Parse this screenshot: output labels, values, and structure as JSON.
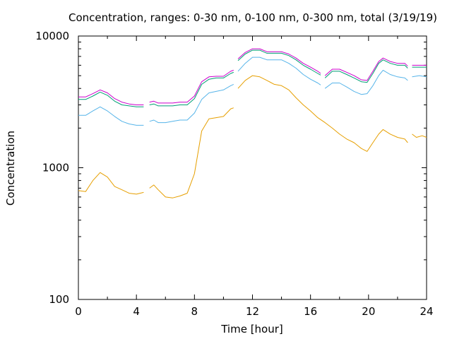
{
  "chart_data": {
    "type": "line",
    "title": "Concentration, ranges: 0-30 nm, 0-100 nm, 0-300 nm, total (3/19/19)",
    "xlabel": "Time [hour]",
    "ylabel": "Concentration",
    "xlim": [
      0,
      24
    ],
    "ylim": [
      100,
      10000
    ],
    "yscale": "log",
    "grid": false,
    "x_ticks": [
      0,
      4,
      8,
      12,
      16,
      20,
      24
    ],
    "y_ticks": [
      100,
      1000,
      10000
    ],
    "series": [
      {
        "color": "#e69f00",
        "segments": [
          [
            [
              0,
              670
            ],
            [
              0.5,
              660
            ],
            [
              1,
              800
            ],
            [
              1.5,
              920
            ],
            [
              2,
              850
            ],
            [
              2.5,
              720
            ],
            [
              3,
              680
            ],
            [
              3.5,
              640
            ],
            [
              4,
              630
            ],
            [
              4.5,
              650
            ]
          ],
          [
            [
              4.9,
              700
            ],
            [
              5.2,
              740
            ],
            [
              5.5,
              680
            ],
            [
              6,
              600
            ],
            [
              6.5,
              590
            ],
            [
              7,
              610
            ],
            [
              7.5,
              640
            ],
            [
              8,
              900
            ],
            [
              8.5,
              1900
            ],
            [
              9,
              2350
            ],
            [
              9.5,
              2400
            ],
            [
              10,
              2450
            ],
            [
              10.5,
              2800
            ],
            [
              10.7,
              2850
            ]
          ],
          [
            [
              11,
              4000
            ],
            [
              11.5,
              4600
            ],
            [
              12,
              5000
            ],
            [
              12.5,
              4900
            ],
            [
              13,
              4600
            ],
            [
              13.5,
              4300
            ],
            [
              14,
              4200
            ],
            [
              14.5,
              3900
            ],
            [
              15,
              3400
            ],
            [
              15.5,
              3000
            ],
            [
              16,
              2700
            ],
            [
              16.5,
              2400
            ],
            [
              17,
              2200
            ],
            [
              17.5,
              2000
            ],
            [
              18,
              1800
            ],
            [
              18.5,
              1650
            ],
            [
              19,
              1550
            ],
            [
              19.5,
              1400
            ],
            [
              19.9,
              1330
            ],
            [
              20.3,
              1550
            ],
            [
              20.7,
              1800
            ],
            [
              21,
              1950
            ],
            [
              21.5,
              1800
            ],
            [
              22,
              1700
            ],
            [
              22.5,
              1650
            ],
            [
              22.7,
              1550
            ]
          ],
          [
            [
              23,
              1800
            ],
            [
              23.3,
              1700
            ],
            [
              23.7,
              1750
            ],
            [
              24,
              1700
            ]
          ]
        ]
      },
      {
        "color": "#56b4e9",
        "segments": [
          [
            [
              0,
              2500
            ],
            [
              0.5,
              2500
            ],
            [
              1,
              2700
            ],
            [
              1.5,
              2900
            ],
            [
              2,
              2700
            ],
            [
              2.5,
              2450
            ],
            [
              3,
              2250
            ],
            [
              3.5,
              2150
            ],
            [
              4,
              2100
            ],
            [
              4.5,
              2100
            ]
          ],
          [
            [
              4.9,
              2250
            ],
            [
              5.2,
              2300
            ],
            [
              5.5,
              2200
            ],
            [
              6,
              2200
            ],
            [
              6.5,
              2250
            ],
            [
              7,
              2300
            ],
            [
              7.5,
              2300
            ],
            [
              8,
              2600
            ],
            [
              8.5,
              3300
            ],
            [
              9,
              3700
            ],
            [
              9.5,
              3800
            ],
            [
              10,
              3900
            ],
            [
              10.5,
              4200
            ],
            [
              10.7,
              4300
            ]
          ],
          [
            [
              11,
              5400
            ],
            [
              11.5,
              6200
            ],
            [
              12,
              6900
            ],
            [
              12.5,
              6900
            ],
            [
              13,
              6600
            ],
            [
              13.5,
              6600
            ],
            [
              14,
              6600
            ],
            [
              14.5,
              6200
            ],
            [
              15,
              5700
            ],
            [
              15.5,
              5100
            ],
            [
              16,
              4700
            ],
            [
              16.5,
              4400
            ],
            [
              16.7,
              4250
            ]
          ],
          [
            [
              17,
              4000
            ],
            [
              17.5,
              4400
            ],
            [
              18,
              4400
            ],
            [
              18.5,
              4100
            ],
            [
              19,
              3800
            ],
            [
              19.5,
              3600
            ],
            [
              19.9,
              3650
            ],
            [
              20.3,
              4200
            ],
            [
              20.7,
              5000
            ],
            [
              21,
              5500
            ],
            [
              21.5,
              5100
            ],
            [
              22,
              4900
            ],
            [
              22.5,
              4800
            ],
            [
              22.7,
              4600
            ]
          ],
          [
            [
              23,
              4900
            ],
            [
              23.5,
              5000
            ],
            [
              24,
              4900
            ]
          ]
        ]
      },
      {
        "color": "#009e73",
        "segments": [
          [
            [
              0,
              3300
            ],
            [
              0.5,
              3300
            ],
            [
              1,
              3500
            ],
            [
              1.5,
              3750
            ],
            [
              2,
              3550
            ],
            [
              2.5,
              3200
            ],
            [
              3,
              3000
            ],
            [
              3.5,
              2950
            ],
            [
              4,
              2900
            ],
            [
              4.5,
              2900
            ]
          ],
          [
            [
              4.9,
              3000
            ],
            [
              5.2,
              3050
            ],
            [
              5.5,
              2950
            ],
            [
              6,
              2950
            ],
            [
              6.5,
              2950
            ],
            [
              7,
              3000
            ],
            [
              7.5,
              3000
            ],
            [
              8,
              3350
            ],
            [
              8.5,
              4300
            ],
            [
              9,
              4700
            ],
            [
              9.5,
              4800
            ],
            [
              10,
              4800
            ],
            [
              10.5,
              5200
            ],
            [
              10.7,
              5300
            ]
          ],
          [
            [
              11,
              6500
            ],
            [
              11.5,
              7300
            ],
            [
              12,
              7800
            ],
            [
              12.5,
              7800
            ],
            [
              13,
              7400
            ],
            [
              13.5,
              7400
            ],
            [
              14,
              7400
            ],
            [
              14.5,
              7100
            ],
            [
              15,
              6600
            ],
            [
              15.5,
              6000
            ],
            [
              16,
              5600
            ],
            [
              16.5,
              5200
            ],
            [
              16.7,
              5050
            ]
          ],
          [
            [
              17,
              4800
            ],
            [
              17.5,
              5400
            ],
            [
              18,
              5400
            ],
            [
              18.5,
              5100
            ],
            [
              19,
              4800
            ],
            [
              19.5,
              4500
            ],
            [
              19.9,
              4450
            ],
            [
              20.3,
              5200
            ],
            [
              20.7,
              6200
            ],
            [
              21,
              6600
            ],
            [
              21.5,
              6200
            ],
            [
              22,
              6000
            ],
            [
              22.5,
              6000
            ],
            [
              22.7,
              5700
            ]
          ],
          [
            [
              23,
              5800
            ],
            [
              23.5,
              5800
            ],
            [
              24,
              5800
            ]
          ]
        ]
      },
      {
        "color": "#cc00cc",
        "segments": [
          [
            [
              0,
              3450
            ],
            [
              0.5,
              3450
            ],
            [
              1,
              3650
            ],
            [
              1.5,
              3900
            ],
            [
              2,
              3700
            ],
            [
              2.5,
              3350
            ],
            [
              3,
              3150
            ],
            [
              3.5,
              3050
            ],
            [
              4,
              3000
            ],
            [
              4.5,
              3000
            ]
          ],
          [
            [
              4.9,
              3150
            ],
            [
              5.2,
              3200
            ],
            [
              5.5,
              3100
            ],
            [
              6,
              3100
            ],
            [
              6.5,
              3100
            ],
            [
              7,
              3150
            ],
            [
              7.5,
              3150
            ],
            [
              8,
              3500
            ],
            [
              8.5,
              4500
            ],
            [
              9,
              4900
            ],
            [
              9.5,
              4950
            ],
            [
              10,
              4950
            ],
            [
              10.5,
              5400
            ],
            [
              10.7,
              5500
            ]
          ],
          [
            [
              11,
              6700
            ],
            [
              11.5,
              7500
            ],
            [
              12,
              8000
            ],
            [
              12.5,
              8000
            ],
            [
              13,
              7600
            ],
            [
              13.5,
              7600
            ],
            [
              14,
              7600
            ],
            [
              14.5,
              7300
            ],
            [
              15,
              6800
            ],
            [
              15.5,
              6200
            ],
            [
              16,
              5800
            ],
            [
              16.5,
              5400
            ],
            [
              16.7,
              5200
            ]
          ],
          [
            [
              17,
              5000
            ],
            [
              17.5,
              5600
            ],
            [
              18,
              5600
            ],
            [
              18.5,
              5300
            ],
            [
              19,
              5000
            ],
            [
              19.5,
              4650
            ],
            [
              19.9,
              4600
            ],
            [
              20.3,
              5400
            ],
            [
              20.7,
              6400
            ],
            [
              21,
              6800
            ],
            [
              21.5,
              6400
            ],
            [
              22,
              6200
            ],
            [
              22.5,
              6200
            ],
            [
              22.7,
              5900
            ]
          ],
          [
            [
              23,
              6000
            ],
            [
              23.5,
              6000
            ],
            [
              24,
              6000
            ]
          ]
        ]
      }
    ]
  }
}
